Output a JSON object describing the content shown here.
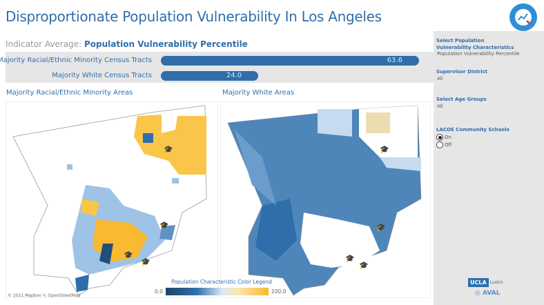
{
  "header": {
    "title": "Disproportionate Population Vulnerability In Los Angeles",
    "logo_icon": "chart-magnifier-icon"
  },
  "indicator": {
    "prefix": "Indicator Average:",
    "name": "Population Vulnerability Percentile"
  },
  "bars": [
    {
      "label": "Majority Racial/Ethnic Minority Census Tracts",
      "value": 63.6,
      "display": "63.6"
    },
    {
      "label": "Majority White Census Tracts",
      "value": 24.0,
      "display": "24.0"
    }
  ],
  "maps": {
    "left_title": "Majority Racial/Ethnic Minority Areas",
    "right_title": "Majority White Areas",
    "school_icon": "graduation-cap-icon"
  },
  "legend": {
    "title": "Population Characteristic Color Legend",
    "min": "0.0",
    "max": "100.0",
    "colors": [
      "#1c4466",
      "#2f6eab",
      "#dbe8f5",
      "#f9b931"
    ]
  },
  "attribution": "© 2021 Mapbox © OpenStreetMap",
  "sidebar": {
    "population_label_1": "Select Population",
    "population_label_2": "Vulnerability Characteristics",
    "population_value": "Population Vulnerability Percentile",
    "district_label": "Supervisor District",
    "district_value": "All",
    "age_label": "Select Age Groups",
    "age_value": "All",
    "schools_label": "LACOE Community Schools",
    "schools_options": [
      {
        "label": "On",
        "selected": true
      },
      {
        "label": "Off",
        "selected": false
      }
    ]
  },
  "footer_logos": {
    "ucla": "UCLA",
    "luskin": "Luskin",
    "aval": "AVAL"
  }
}
